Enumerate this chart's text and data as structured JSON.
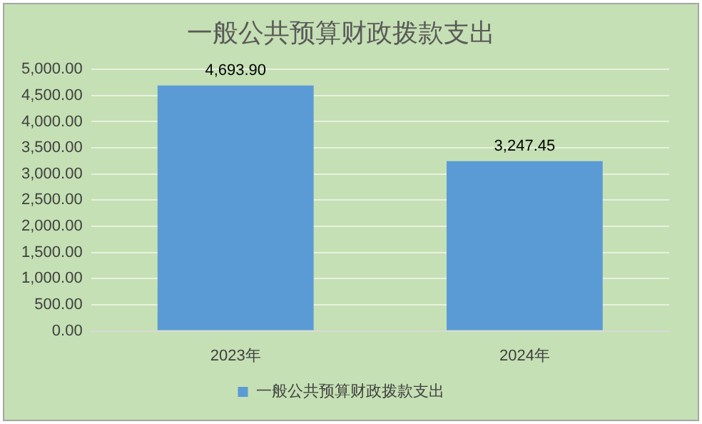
{
  "chart_data": {
    "type": "bar",
    "title": "一般公共预算财政拨款支出",
    "categories": [
      "2023年",
      "2024年"
    ],
    "series": [
      {
        "name": "一般公共预算财政拨款支出",
        "color": "#5b9bd5",
        "values": [
          4693.9,
          3247.45
        ],
        "value_labels": [
          "4,693.90",
          "3,247.45"
        ]
      }
    ],
    "ylim": [
      0,
      5000
    ],
    "yticks": [
      {
        "value": 0,
        "label": "0.00"
      },
      {
        "value": 500,
        "label": "500.00"
      },
      {
        "value": 1000,
        "label": "1,000.00"
      },
      {
        "value": 1500,
        "label": "1,500.00"
      },
      {
        "value": 2000,
        "label": "2,000.00"
      },
      {
        "value": 2500,
        "label": "2,500.00"
      },
      {
        "value": 3000,
        "label": "3,000.00"
      },
      {
        "value": 3500,
        "label": "3,500.00"
      },
      {
        "value": 4000,
        "label": "4,000.00"
      },
      {
        "value": 4500,
        "label": "4,500.00"
      },
      {
        "value": 5000,
        "label": "5,000.00"
      }
    ],
    "grid": "y",
    "legend": "bottom"
  }
}
